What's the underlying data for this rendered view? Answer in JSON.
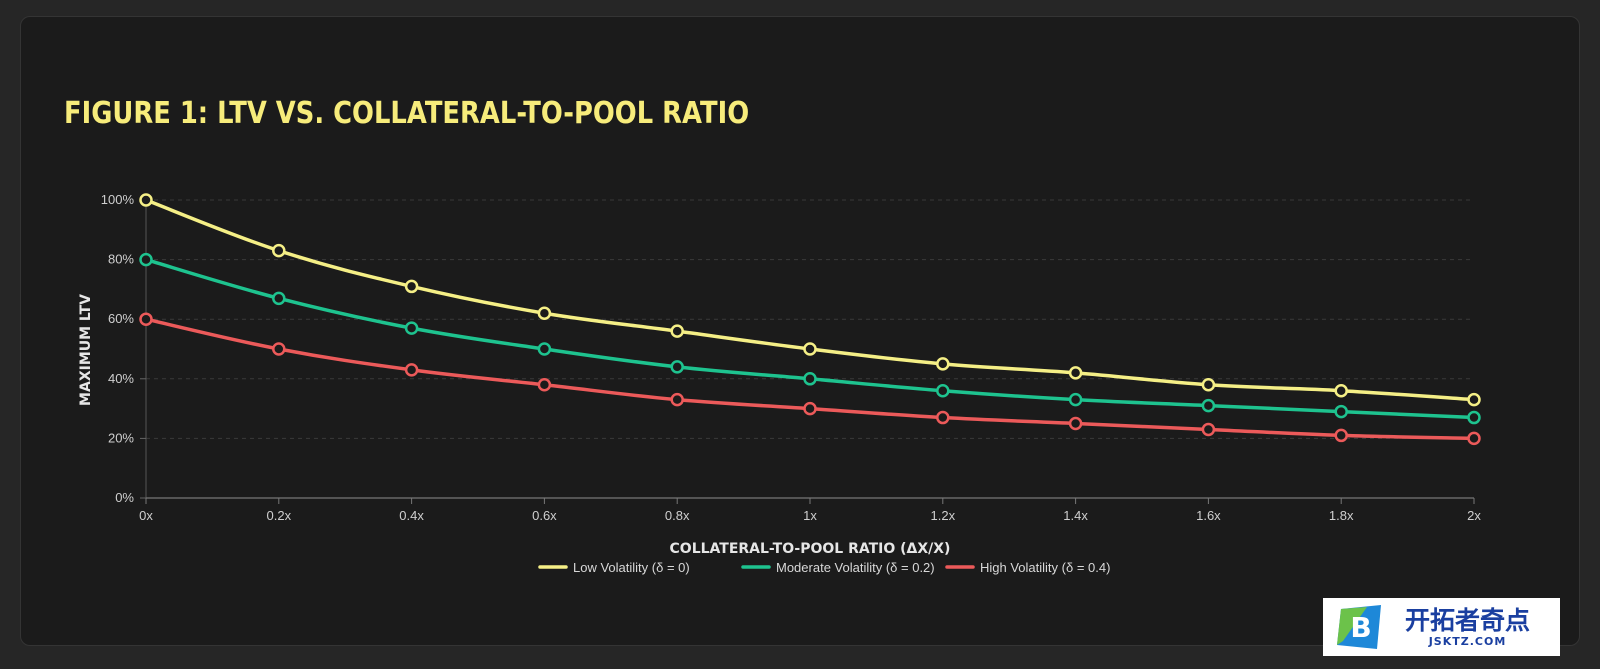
{
  "chart_data": {
    "type": "line",
    "title": "FIGURE 1: LTV VS. COLLATERAL-TO-POOL RATIO",
    "xlabel": "COLLATERAL-TO-POOL RATIO (ΔX/X)",
    "ylabel": "MAXIMUM LTV",
    "x": [
      0,
      0.2,
      0.4,
      0.6,
      0.8,
      1.0,
      1.2,
      1.4,
      1.6,
      1.8,
      2.0
    ],
    "x_tick_labels": [
      "0x",
      "0.2x",
      "0.4x",
      "0.6x",
      "0.8x",
      "1x",
      "1.2x",
      "1.4x",
      "1.6x",
      "1.8x",
      "2x"
    ],
    "y_ticks": [
      0,
      20,
      40,
      60,
      80,
      100
    ],
    "y_tick_labels": [
      "0%",
      "20%",
      "40%",
      "60%",
      "80%",
      "100%"
    ],
    "xlim": [
      0,
      2
    ],
    "ylim": [
      0,
      100
    ],
    "grid": "horizontal dashed",
    "legend_position": "bottom-center",
    "series": [
      {
        "name": "Low Volatility (δ = 0)",
        "color": "#f5ef86",
        "values": [
          100,
          83,
          71,
          62,
          56,
          50,
          45,
          42,
          38,
          36,
          33
        ]
      },
      {
        "name": "Moderate Volatility (δ = 0.2)",
        "color": "#1ec38f",
        "values": [
          80,
          67,
          57,
          50,
          44,
          40,
          36,
          33,
          31,
          29,
          27
        ]
      },
      {
        "name": "High Volatility (δ = 0.4)",
        "color": "#ec5a5a",
        "values": [
          60,
          50,
          43,
          38,
          33,
          30,
          27,
          25,
          23,
          21,
          20
        ]
      }
    ]
  },
  "watermark": {
    "logo_letter": "B",
    "main_text": "开拓者奇点",
    "sub_text": "JSKTZ.COM"
  }
}
